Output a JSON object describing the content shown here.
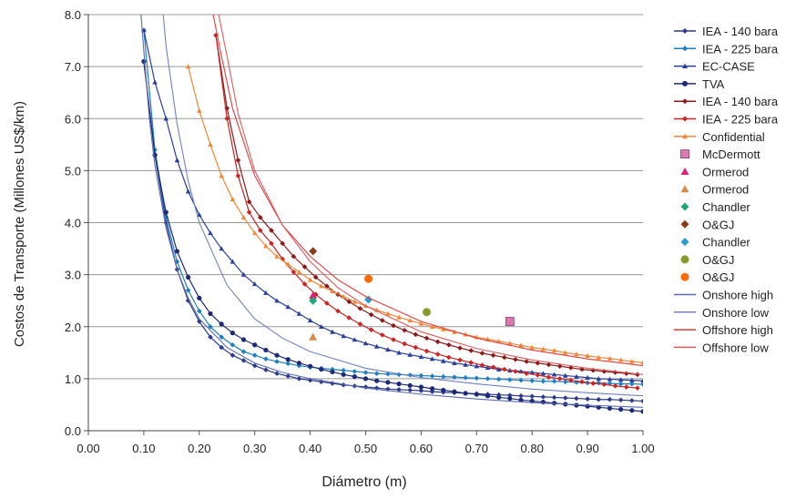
{
  "chart_data": {
    "type": "scatter",
    "title": "",
    "xlabel": "Diámetro (m)",
    "ylabel": "Costos de Transporte (Millones US$/km)",
    "xlim": [
      0.0,
      1.0
    ],
    "ylim": [
      0.0,
      8.0
    ],
    "xticks": [
      "0.00",
      "0.10",
      "0.20",
      "0.30",
      "0.40",
      "0.50",
      "0.60",
      "0.70",
      "0.80",
      "0.90",
      "1.00"
    ],
    "yticks": [
      "0.0",
      "1.0",
      "2.0",
      "3.0",
      "4.0",
      "5.0",
      "6.0",
      "7.0",
      "8.0"
    ],
    "grid": "horizontal",
    "legend_position": "right",
    "series": [
      {
        "name": "IEA - 140 bara",
        "color": "#2c3a8c",
        "marker": "diamond",
        "style": "line-marker",
        "x": [
          0.1,
          0.12,
          0.14,
          0.16,
          0.18,
          0.2,
          0.22,
          0.24,
          0.26,
          0.28,
          0.3,
          0.32,
          0.34,
          0.36,
          0.38,
          0.4,
          0.42,
          0.44,
          0.46,
          0.48,
          0.5,
          0.52,
          0.54,
          0.56,
          0.58,
          0.6,
          0.62,
          0.64,
          0.66,
          0.68,
          0.7,
          0.72,
          0.74,
          0.76,
          0.78,
          0.8,
          0.82,
          0.84,
          0.86,
          0.88,
          0.9,
          0.92,
          0.94,
          0.96,
          0.98,
          1.0
        ],
        "y": [
          7.1,
          5.3,
          4.0,
          3.1,
          2.5,
          2.1,
          1.8,
          1.6,
          1.45,
          1.35,
          1.25,
          1.17,
          1.1,
          1.05,
          1.0,
          0.97,
          0.94,
          0.91,
          0.88,
          0.86,
          0.84,
          0.82,
          0.8,
          0.79,
          0.78,
          0.77,
          0.75,
          0.74,
          0.73,
          0.72,
          0.71,
          0.7,
          0.69,
          0.68,
          0.67,
          0.66,
          0.65,
          0.64,
          0.63,
          0.62,
          0.61,
          0.6,
          0.6,
          0.59,
          0.58,
          0.57
        ]
      },
      {
        "name": "IEA - 225 bara",
        "color": "#1f7fc0",
        "marker": "diamond",
        "style": "line-marker",
        "x": [
          0.1,
          0.12,
          0.14,
          0.16,
          0.18,
          0.2,
          0.22,
          0.24,
          0.26,
          0.28,
          0.3,
          0.32,
          0.34,
          0.36,
          0.38,
          0.4,
          0.42,
          0.44,
          0.46,
          0.48,
          0.5,
          0.52,
          0.54,
          0.56,
          0.58,
          0.6,
          0.62,
          0.64,
          0.66,
          0.68,
          0.7,
          0.72,
          0.74,
          0.76,
          0.78,
          0.8,
          0.82,
          0.84,
          0.86,
          0.88,
          0.9,
          0.92,
          0.94,
          0.96,
          0.98,
          1.0
        ],
        "y": [
          7.7,
          5.4,
          4.1,
          3.25,
          2.7,
          2.3,
          2.0,
          1.8,
          1.65,
          1.52,
          1.45,
          1.38,
          1.33,
          1.29,
          1.25,
          1.22,
          1.2,
          1.18,
          1.16,
          1.14,
          1.12,
          1.1,
          1.09,
          1.08,
          1.07,
          1.06,
          1.05,
          1.04,
          1.03,
          1.02,
          1.01,
          1.0,
          0.99,
          0.98,
          0.97,
          0.96,
          0.95,
          0.95,
          0.94,
          0.93,
          0.92,
          0.92,
          0.91,
          0.9,
          0.9,
          0.89
        ]
      },
      {
        "name": "EC-CASE",
        "color": "#2a3f9a",
        "marker": "triangle",
        "style": "line-marker",
        "x": [
          0.1,
          0.12,
          0.14,
          0.16,
          0.18,
          0.2,
          0.22,
          0.24,
          0.26,
          0.28,
          0.3,
          0.32,
          0.34,
          0.36,
          0.38,
          0.4,
          0.42,
          0.44,
          0.46,
          0.48,
          0.5,
          0.52,
          0.54,
          0.56,
          0.58,
          0.6,
          0.62,
          0.64,
          0.66,
          0.68,
          0.7,
          0.72,
          0.74,
          0.76,
          0.78,
          0.8,
          0.82,
          0.84,
          0.86,
          0.88,
          0.9,
          0.92,
          0.94,
          0.96,
          0.98,
          1.0
        ],
        "y": [
          7.7,
          6.7,
          6.0,
          5.2,
          4.6,
          4.15,
          3.8,
          3.5,
          3.25,
          3.0,
          2.82,
          2.65,
          2.5,
          2.38,
          2.25,
          2.12,
          2.0,
          1.9,
          1.82,
          1.75,
          1.68,
          1.62,
          1.56,
          1.5,
          1.46,
          1.42,
          1.38,
          1.34,
          1.3,
          1.27,
          1.24,
          1.21,
          1.18,
          1.16,
          1.14,
          1.12,
          1.1,
          1.08,
          1.06,
          1.04,
          1.02,
          1.0,
          0.99,
          0.98,
          0.97,
          0.96
        ]
      },
      {
        "name": "TVA",
        "color": "#1c2a78",
        "marker": "circle",
        "style": "line-marker",
        "x": [
          0.1,
          0.12,
          0.14,
          0.16,
          0.18,
          0.2,
          0.22,
          0.24,
          0.26,
          0.28,
          0.3,
          0.32,
          0.34,
          0.36,
          0.38,
          0.4,
          0.42,
          0.44,
          0.46,
          0.48,
          0.5,
          0.52,
          0.54,
          0.56,
          0.58,
          0.6,
          0.62,
          0.64,
          0.66,
          0.68,
          0.7,
          0.72,
          0.74,
          0.76,
          0.78,
          0.8,
          0.82,
          0.84,
          0.86,
          0.88,
          0.9,
          0.92,
          0.94,
          0.96,
          0.98,
          1.0
        ],
        "y": [
          7.1,
          5.3,
          4.2,
          3.45,
          2.95,
          2.55,
          2.25,
          2.05,
          1.88,
          1.75,
          1.65,
          1.55,
          1.45,
          1.37,
          1.3,
          1.24,
          1.18,
          1.13,
          1.08,
          1.04,
          1.0,
          0.96,
          0.93,
          0.9,
          0.87,
          0.84,
          0.81,
          0.78,
          0.75,
          0.72,
          0.7,
          0.67,
          0.64,
          0.62,
          0.59,
          0.57,
          0.55,
          0.53,
          0.51,
          0.49,
          0.47,
          0.45,
          0.43,
          0.41,
          0.39,
          0.37
        ]
      },
      {
        "name": "IEA - 140 bara",
        "color": "#8b1a1a",
        "marker": "diamond",
        "style": "line-marker",
        "x": [
          0.23,
          0.25,
          0.27,
          0.29,
          0.31,
          0.33,
          0.35,
          0.37,
          0.39,
          0.41,
          0.43,
          0.45,
          0.47,
          0.49,
          0.51,
          0.53,
          0.55,
          0.57,
          0.59,
          0.61,
          0.63,
          0.65,
          0.67,
          0.69,
          0.71,
          0.73,
          0.75,
          0.77,
          0.79,
          0.81,
          0.83,
          0.85,
          0.87,
          0.89,
          0.91,
          0.93,
          0.95,
          0.97,
          0.99
        ],
        "y": [
          7.6,
          6.2,
          5.2,
          4.4,
          4.1,
          3.85,
          3.6,
          3.35,
          3.15,
          2.95,
          2.78,
          2.62,
          2.48,
          2.35,
          2.23,
          2.12,
          2.02,
          1.93,
          1.85,
          1.78,
          1.71,
          1.65,
          1.59,
          1.54,
          1.49,
          1.45,
          1.41,
          1.37,
          1.33,
          1.3,
          1.27,
          1.24,
          1.21,
          1.18,
          1.16,
          1.14,
          1.12,
          1.1,
          1.08
        ]
      },
      {
        "name": "IEA - 225 bara",
        "color": "#cc2222",
        "marker": "diamond",
        "style": "line-marker",
        "x": [
          0.23,
          0.25,
          0.27,
          0.29,
          0.31,
          0.33,
          0.35,
          0.37,
          0.39,
          0.41,
          0.43,
          0.45,
          0.47,
          0.49,
          0.51,
          0.53,
          0.55,
          0.57,
          0.59,
          0.61,
          0.63,
          0.65,
          0.67,
          0.69,
          0.71,
          0.73,
          0.75,
          0.77,
          0.79,
          0.81,
          0.83,
          0.85,
          0.87,
          0.89,
          0.91,
          0.93,
          0.95,
          0.97,
          0.99
        ],
        "y": [
          7.6,
          6.0,
          4.9,
          4.2,
          3.85,
          3.6,
          3.3,
          3.05,
          2.82,
          2.62,
          2.45,
          2.3,
          2.17,
          2.05,
          1.94,
          1.84,
          1.75,
          1.67,
          1.6,
          1.53,
          1.47,
          1.41,
          1.36,
          1.31,
          1.26,
          1.22,
          1.18,
          1.14,
          1.1,
          1.07,
          1.03,
          1.0,
          0.97,
          0.94,
          0.91,
          0.89,
          0.86,
          0.84,
          0.82
        ]
      },
      {
        "name": "Confidential",
        "color": "#f0883a",
        "marker": "triangle",
        "style": "line-marker",
        "x": [
          0.18,
          0.2,
          0.22,
          0.24,
          0.26,
          0.28,
          0.3,
          0.32,
          0.34,
          0.36,
          0.38,
          0.4,
          0.42,
          0.44,
          0.46,
          0.48,
          0.5,
          0.52,
          0.54,
          0.56,
          0.58,
          0.6,
          0.62,
          0.64,
          0.66,
          0.68,
          0.7,
          0.72,
          0.74,
          0.76,
          0.78,
          0.8,
          0.82,
          0.84,
          0.86,
          0.88,
          0.9,
          0.92,
          0.94,
          0.96,
          0.98,
          1.0
        ],
        "y": [
          7.0,
          6.15,
          5.5,
          4.9,
          4.45,
          4.1,
          3.8,
          3.55,
          3.35,
          3.2,
          3.05,
          2.9,
          2.78,
          2.68,
          2.58,
          2.48,
          2.4,
          2.32,
          2.25,
          2.18,
          2.12,
          2.06,
          2.0,
          1.95,
          1.9,
          1.85,
          1.8,
          1.76,
          1.72,
          1.68,
          1.64,
          1.6,
          1.57,
          1.54,
          1.5,
          1.47,
          1.44,
          1.41,
          1.39,
          1.36,
          1.33,
          1.31
        ]
      },
      {
        "name": "McDermott",
        "color": "#d97ab0",
        "marker": "square",
        "style": "points",
        "x": [
          0.76
        ],
        "y": [
          2.1
        ]
      },
      {
        "name": "Ormerod",
        "color": "#e0217a",
        "marker": "triangle",
        "style": "points",
        "x": [
          0.405
        ],
        "y": [
          2.6
        ]
      },
      {
        "name": "Ormerod",
        "color": "#d98a4a",
        "marker": "triangle",
        "style": "points",
        "x": [
          0.405
        ],
        "y": [
          1.8
        ]
      },
      {
        "name": "Chandler",
        "color": "#1fa57a",
        "marker": "diamond",
        "style": "points",
        "x": [
          0.405
        ],
        "y": [
          2.5
        ]
      },
      {
        "name": "O&GJ",
        "color": "#8b3a1a",
        "marker": "diamond",
        "style": "points",
        "x": [
          0.405
        ],
        "y": [
          3.45
        ]
      },
      {
        "name": "Chandler",
        "color": "#2a9ad0",
        "marker": "diamond",
        "style": "points",
        "x": [
          0.505
        ],
        "y": [
          2.52
        ]
      },
      {
        "name": "O&GJ",
        "color": "#8a9a2a",
        "marker": "circle",
        "style": "points",
        "x": [
          0.61
        ],
        "y": [
          2.28
        ]
      },
      {
        "name": "O&GJ",
        "color": "#ff6a00",
        "marker": "circle",
        "style": "points",
        "x": [
          0.505
        ],
        "y": [
          2.92
        ]
      },
      {
        "name": "Onshore high",
        "color": "#5a6bb0",
        "marker": "none",
        "style": "line",
        "x": [
          0.095,
          0.1,
          0.11,
          0.12,
          0.14,
          0.16,
          0.18,
          0.2,
          0.25,
          0.3,
          0.35,
          0.4,
          0.5,
          0.6,
          0.7,
          0.8,
          0.9,
          1.0
        ],
        "y": [
          8.0,
          7.3,
          6.0,
          5.1,
          3.9,
          3.1,
          2.55,
          2.15,
          1.6,
          1.3,
          1.12,
          1.0,
          0.82,
          0.7,
          0.61,
          0.54,
          0.49,
          0.45
        ]
      },
      {
        "name": "Onshore low",
        "color": "#7080c0",
        "marker": "none",
        "style": "line",
        "x": [
          0.135,
          0.14,
          0.16,
          0.18,
          0.2,
          0.25,
          0.3,
          0.35,
          0.4,
          0.5,
          0.6,
          0.7,
          0.8,
          0.9,
          1.0
        ],
        "y": [
          8.0,
          7.4,
          5.9,
          4.8,
          4.0,
          2.8,
          2.15,
          1.78,
          1.52,
          1.2,
          1.02,
          0.9,
          0.8,
          0.73,
          0.67
        ]
      },
      {
        "name": "Offshore high",
        "color": "#e83a3a",
        "marker": "none",
        "style": "line",
        "x": [
          0.225,
          0.24,
          0.26,
          0.3,
          0.35,
          0.4,
          0.45,
          0.5,
          0.6,
          0.7,
          0.8,
          0.9,
          1.0
        ],
        "y": [
          8.0,
          7.2,
          6.2,
          4.9,
          3.95,
          3.35,
          2.9,
          2.58,
          2.1,
          1.78,
          1.55,
          1.38,
          1.25
        ]
      },
      {
        "name": "Offshore low",
        "color": "#e05a5a",
        "marker": "none",
        "style": "line",
        "x": [
          0.235,
          0.25,
          0.27,
          0.3,
          0.35,
          0.4,
          0.45,
          0.5,
          0.6,
          0.7,
          0.8,
          0.9,
          1.0
        ],
        "y": [
          8.0,
          7.2,
          6.1,
          5.0,
          3.95,
          3.25,
          2.75,
          2.4,
          1.9,
          1.58,
          1.36,
          1.2,
          1.08
        ]
      }
    ]
  }
}
